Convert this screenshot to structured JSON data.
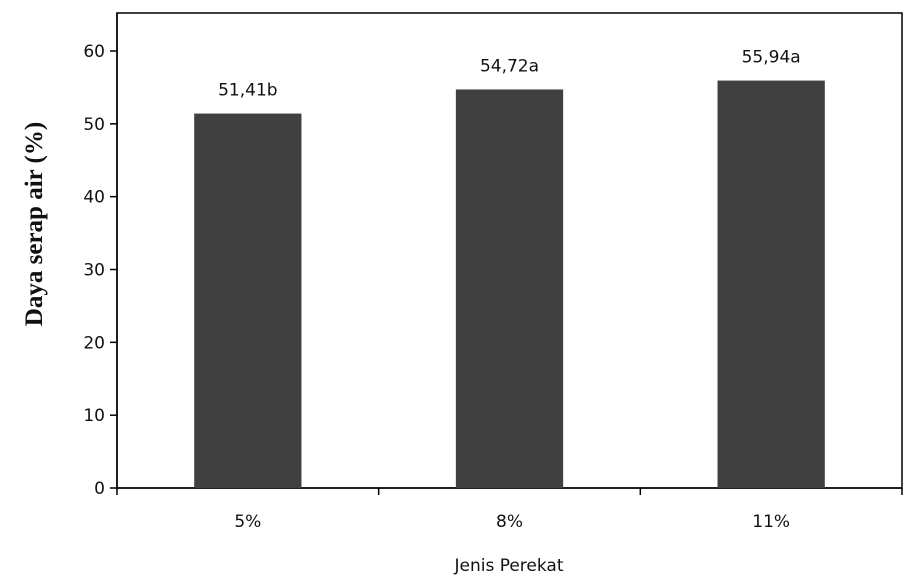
{
  "chart_data": {
    "type": "bar",
    "categories": [
      "5%",
      "8%",
      "11%"
    ],
    "values": [
      51.41,
      54.72,
      55.94
    ],
    "data_labels": [
      "51,41b",
      "54,72a",
      "55,94a"
    ],
    "title": "",
    "xlabel": "Jenis Perekat",
    "ylabel": "Daya serap  air (%)",
    "ylim": [
      0,
      60
    ],
    "yticks": [
      0,
      10,
      20,
      30,
      40,
      50,
      60
    ],
    "ytick_labels": [
      "0",
      "10",
      "20",
      "30",
      "40",
      "50",
      "60"
    ],
    "grid": false,
    "legend": "none",
    "bar_color": "#404040",
    "frame_color": "#000000"
  }
}
